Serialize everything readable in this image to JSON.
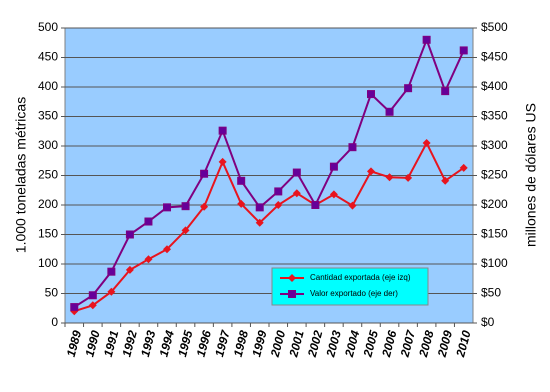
{
  "chart_data": {
    "type": "line",
    "categories": [
      "1989",
      "1990",
      "1991",
      "1992",
      "1993",
      "1994",
      "1995",
      "1996",
      "1997",
      "1998",
      "1999",
      "2000",
      "2001",
      "2002",
      "2003",
      "2004",
      "2005",
      "2006",
      "2007",
      "2008",
      "2009",
      "2010"
    ],
    "ylabel": "1.000 toneladas métricas",
    "y2label": "millones de dólares US",
    "ylim": [
      0,
      500
    ],
    "yticks": [
      0,
      50,
      100,
      150,
      200,
      250,
      300,
      350,
      400,
      450,
      500
    ],
    "y2lim": [
      0,
      500
    ],
    "y2ticks": [
      {
        "value": 0,
        "label": "$0"
      },
      {
        "value": 50,
        "label": "$50"
      },
      {
        "value": 100,
        "label": "$100"
      },
      {
        "value": 150,
        "label": "$150"
      },
      {
        "value": 200,
        "label": "$200"
      },
      {
        "value": 250,
        "label": "$250"
      },
      {
        "value": 300,
        "label": "$300"
      },
      {
        "value": 350,
        "label": "$350"
      },
      {
        "value": 400,
        "label": "$400"
      },
      {
        "value": 450,
        "label": "$450"
      },
      {
        "value": 500,
        "label": "$500"
      }
    ],
    "grid": true,
    "legend": "lower right",
    "series": [
      {
        "name": "Cantidad exportada (eje izq)",
        "color": "#e8141e",
        "marker": "diamond",
        "values": [
          20,
          30,
          53,
          90,
          108,
          125,
          157,
          197,
          273,
          202,
          170,
          200,
          220,
          200,
          218,
          199,
          257,
          247,
          246,
          305,
          241,
          263
        ]
      },
      {
        "name": "Valor exportado (eje der)",
        "color": "#800080",
        "marker": "square",
        "axis": "y2",
        "values": [
          27,
          47,
          87,
          150,
          172,
          196,
          198,
          253,
          326,
          241,
          196,
          223,
          255,
          200,
          265,
          298,
          388,
          358,
          398,
          480,
          393,
          462
        ]
      }
    ]
  }
}
